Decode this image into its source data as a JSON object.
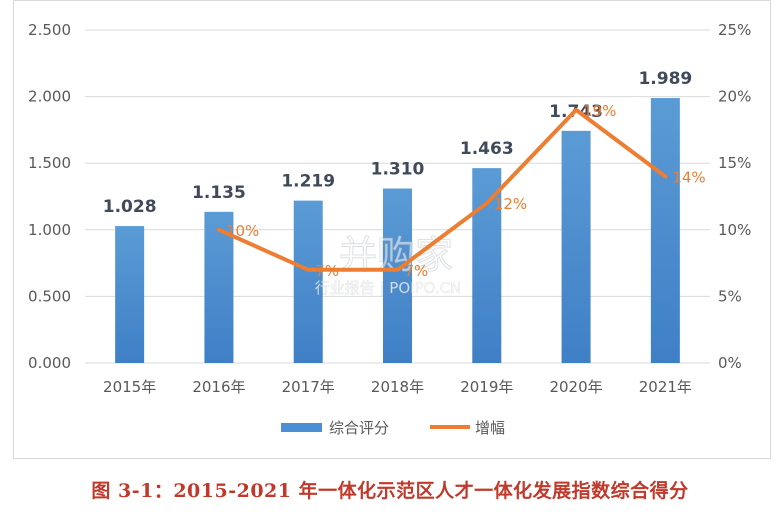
{
  "chart_data": {
    "type": "bar",
    "categories": [
      "2015年",
      "2016年",
      "2017年",
      "2018年",
      "2019年",
      "2020年",
      "2021年"
    ],
    "series": [
      {
        "name": "综合评分",
        "type": "bar",
        "axis": "left",
        "values": [
          1.028,
          1.135,
          1.219,
          1.31,
          1.463,
          1.743,
          1.989
        ],
        "labels": [
          "1.028",
          "1.135",
          "1.219",
          "1.310",
          "1.463",
          "1.743",
          "1.989"
        ],
        "color": "#4a8fd4"
      },
      {
        "name": "增幅",
        "type": "line",
        "axis": "right",
        "values": [
          null,
          10,
          7,
          7,
          12,
          19,
          14
        ],
        "labels": [
          "",
          "10%",
          "7%",
          "7%",
          "12%",
          "19%",
          "14%"
        ],
        "color": "#ed7d31"
      }
    ],
    "left_axis": {
      "min": 0,
      "max": 2.5,
      "step": 0.5,
      "ticks": [
        "0.000",
        "0.500",
        "1.000",
        "1.500",
        "2.000",
        "2.500"
      ]
    },
    "right_axis": {
      "min": 0,
      "max": 25,
      "step": 5,
      "ticks": [
        "0%",
        "5%",
        "10%",
        "15%",
        "20%",
        "25%"
      ]
    },
    "grid": true,
    "legend_position": "bottom"
  },
  "watermark": {
    "brand": "并购家",
    "sub": "行业报告 | POIPO.CN"
  },
  "caption": "图 3-1：2015-2021 年一体化示范区人才一体化发展指数综合得分"
}
